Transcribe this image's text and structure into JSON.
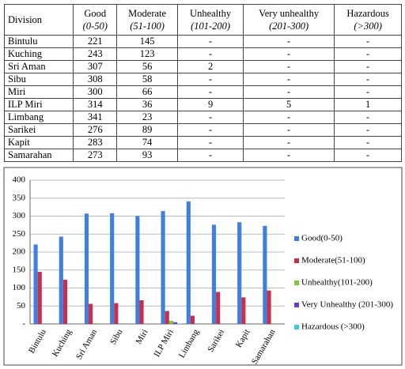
{
  "table": {
    "header": [
      {
        "title": "Division"
      },
      {
        "title": "Good",
        "range": "(0-50)"
      },
      {
        "title": "Moderate",
        "range": "(51-100)"
      },
      {
        "title": "Unhealthy",
        "range": "(101-200)"
      },
      {
        "title": "Very unhealthy",
        "range": "(201-300)"
      },
      {
        "title": "Hazardous",
        "range": "(>300)"
      }
    ],
    "rows": [
      [
        "Bintulu",
        "221",
        "145",
        "-",
        "-",
        "-"
      ],
      [
        "Kuching",
        "243",
        "123",
        "-",
        "-",
        "-"
      ],
      [
        "Sri Aman",
        "307",
        "56",
        "2",
        "-",
        "-"
      ],
      [
        "Sibu",
        "308",
        "58",
        "-",
        "-",
        "-"
      ],
      [
        "Miri",
        "300",
        "66",
        "-",
        "-",
        "-"
      ],
      [
        "ILP Miri",
        "314",
        "36",
        "9",
        "5",
        "1"
      ],
      [
        "Limbang",
        "341",
        "23",
        "-",
        "-",
        "-"
      ],
      [
        "Sarikei",
        "276",
        "89",
        "-",
        "-",
        "-"
      ],
      [
        "Kapit",
        "283",
        "74",
        "-",
        "-",
        "-"
      ],
      [
        "Samarahan",
        "273",
        "93",
        "-",
        "-",
        "-"
      ]
    ]
  },
  "chart_data": {
    "type": "bar",
    "categories": [
      "Bintulu",
      "Kuching",
      "Sri Aman",
      "Sibu",
      "Miri",
      "ILP Miri",
      "Limbang",
      "Sarikei",
      "Kapit",
      "Samarahan"
    ],
    "series": [
      {
        "name": "Good(0-50)",
        "color": "#3f7fe0",
        "values": [
          221,
          243,
          307,
          308,
          300,
          314,
          341,
          276,
          283,
          273
        ]
      },
      {
        "name": "Moderate(51-100)",
        "color": "#c8304a",
        "values": [
          145,
          123,
          56,
          58,
          66,
          36,
          23,
          89,
          74,
          93
        ]
      },
      {
        "name": "Unhealthy(101-200)",
        "color": "#7fc43a",
        "values": [
          null,
          null,
          2,
          null,
          null,
          9,
          null,
          null,
          null,
          null
        ]
      },
      {
        "name": "Very Unhealthy (201-300)",
        "color": "#6a3fc8",
        "values": [
          null,
          null,
          null,
          null,
          null,
          5,
          null,
          null,
          null,
          null
        ]
      },
      {
        "name": "Hazardous (>300)",
        "color": "#3fc8d8",
        "values": [
          null,
          null,
          null,
          null,
          null,
          1,
          null,
          null,
          null,
          null
        ]
      }
    ],
    "ylim": [
      0,
      400
    ],
    "yticks": [
      {
        "value": 0,
        "label": "-"
      },
      50,
      100,
      150,
      200,
      250,
      300,
      350,
      400
    ],
    "grid": true,
    "legend": "right"
  }
}
